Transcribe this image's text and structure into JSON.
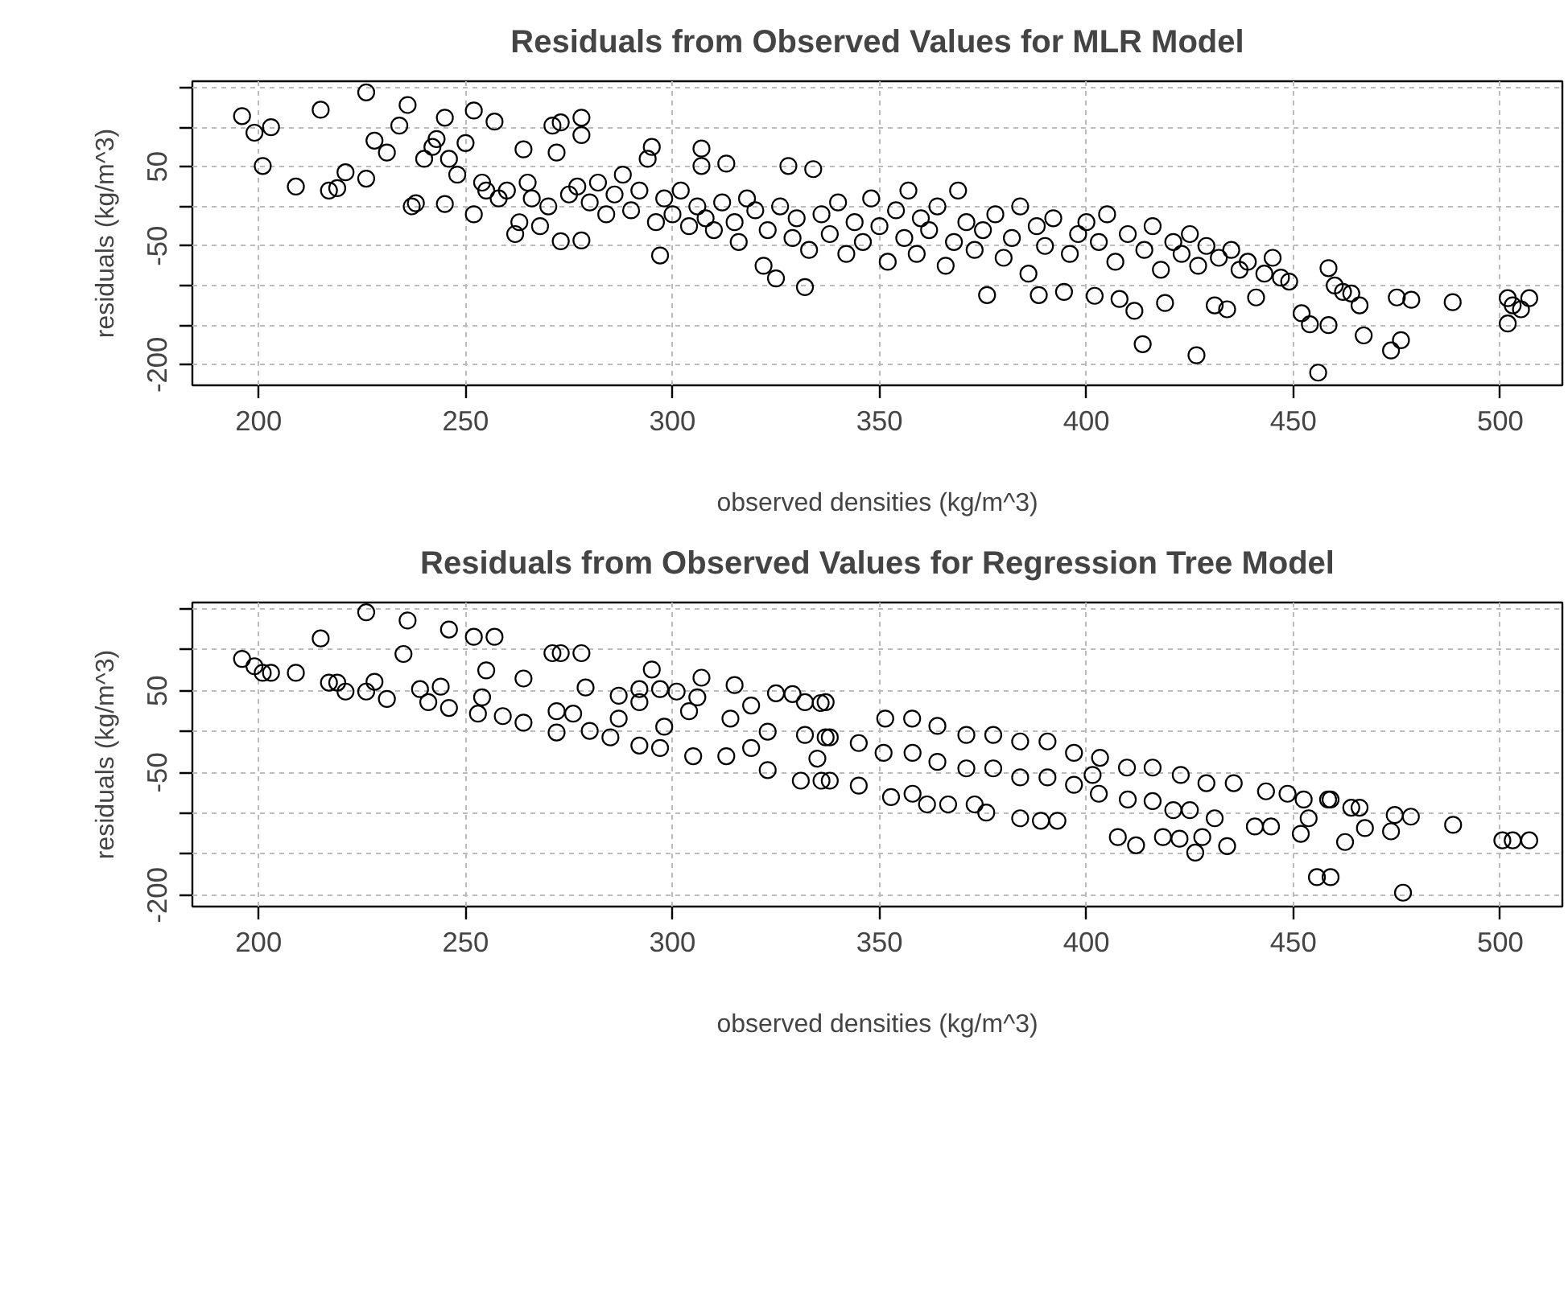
{
  "chart_data": [
    {
      "type": "scatter",
      "title": "Residuals from Observed Values for MLR Model",
      "xlabel": "observed densities (kg/m^3)",
      "ylabel": "residuals (kg/m^3)",
      "xlim": [
        184,
        515
      ],
      "ylim": [
        -226,
        158
      ],
      "xticks": [
        200,
        250,
        300,
        350,
        400,
        450,
        500
      ],
      "yticks": [
        {
          "value": 150,
          "label": null
        },
        {
          "value": 100,
          "label": null
        },
        50,
        {
          "value": 0,
          "label": null
        },
        -50,
        {
          "value": -100,
          "label": null
        },
        {
          "value": -150,
          "label": null
        },
        -200
      ],
      "grid": true,
      "marker": "circle",
      "series": [
        {
          "color": "#000000",
          "x": [
            196,
            199,
            203,
            201,
            209,
            215,
            217,
            219,
            221,
            226,
            226,
            228,
            231,
            236,
            234,
            237,
            238,
            240,
            242,
            243,
            245,
            245,
            246,
            248,
            250,
            252,
            252,
            254,
            255,
            257,
            258,
            260,
            262,
            263,
            264,
            265,
            266,
            268,
            270,
            271,
            272,
            273,
            273,
            275,
            277,
            278,
            278,
            278,
            280,
            282,
            284,
            286,
            288,
            290,
            292,
            294,
            295,
            296,
            297,
            298,
            300,
            302,
            304,
            306,
            307,
            307,
            308,
            310,
            312,
            313,
            315,
            316,
            318,
            320,
            322,
            323,
            325,
            326,
            328,
            329,
            330,
            332,
            333,
            334,
            336,
            338,
            340,
            342,
            344,
            346,
            348,
            350,
            352,
            354,
            356,
            357,
            359,
            360,
            362,
            364,
            366,
            368,
            369,
            371,
            373,
            375,
            376,
            378,
            380,
            382,
            384,
            386,
            388,
            388.5,
            390,
            392,
            394.6,
            396,
            398,
            400,
            402,
            403,
            405,
            407,
            408,
            410,
            411.6,
            413.6,
            414,
            416,
            418,
            419,
            421,
            423,
            425,
            426.6,
            427,
            429,
            431,
            432,
            434,
            435,
            437,
            439,
            441,
            443,
            445,
            447,
            449,
            452,
            454,
            456,
            458.5,
            458.5,
            460,
            462,
            464,
            466,
            467,
            473.6,
            475,
            476,
            478.5,
            488.5,
            501.8,
            501.8,
            503,
            505,
            507
          ],
          "values": [
            114,
            93,
            100,
            51,
            25,
            122,
            20,
            23,
            43,
            35,
            144,
            83,
            68,
            128,
            102,
            0,
            4,
            60,
            75,
            85,
            112,
            3,
            60,
            40,
            80,
            121,
            -10,
            30,
            20,
            107,
            10,
            20,
            -35,
            -20,
            72,
            30,
            10,
            -25,
            0,
            102,
            68,
            106,
            -44,
            15,
            25,
            112,
            90,
            -43,
            5,
            30,
            -10,
            15,
            40,
            -5,
            20,
            60,
            75,
            -20,
            -62,
            10,
            -10,
            20,
            -25,
            0,
            73,
            51,
            -15,
            -30,
            5,
            54,
            -20,
            -45,
            10,
            -5,
            -75,
            -30,
            -91,
            0,
            51,
            -40,
            -15,
            -102,
            -55,
            47,
            -10,
            -35,
            5,
            -60,
            -20,
            -45,
            10,
            -25,
            -70,
            -5,
            -40,
            20,
            -60,
            -15,
            -30,
            0,
            -75,
            -45,
            20,
            -20,
            -55,
            -30,
            -112,
            -10,
            -65,
            -40,
            0,
            -85,
            -25,
            -112,
            -50,
            -15,
            -108,
            -60,
            -35,
            -20,
            -113,
            -45,
            -10,
            -70,
            -117,
            -35,
            -132,
            -174,
            -55,
            -25,
            -80,
            -122,
            -45,
            -60,
            -35,
            -188,
            -75,
            -50,
            -125,
            -65,
            -130,
            -55,
            -80,
            -70,
            -115,
            -85,
            -65,
            -90,
            -95,
            -135,
            -149,
            -210,
            -78,
            -150,
            -100,
            -108,
            -110,
            -125,
            -163,
            -182,
            -115,
            -169,
            -118,
            -121,
            -116,
            -148,
            -125,
            -130,
            -116
          ]
        }
      ]
    },
    {
      "type": "scatter",
      "title": "Residuals from Observed Values for Regression Tree Model",
      "xlabel": "observed densities (kg/m^3)",
      "ylabel": "residuals (kg/m^3)",
      "xlim": [
        184,
        515
      ],
      "ylim": [
        -214,
        158
      ],
      "xticks": [
        200,
        250,
        300,
        350,
        400,
        450,
        500
      ],
      "yticks": [
        {
          "value": 150,
          "label": null
        },
        {
          "value": 100,
          "label": null
        },
        50,
        {
          "value": 0,
          "label": null
        },
        -50,
        {
          "value": -100,
          "label": null
        },
        {
          "value": -150,
          "label": null
        },
        -200
      ],
      "grid": true,
      "marker": "circle",
      "series": [
        {
          "color": "#000000",
          "x": [
            196,
            199,
            201,
            203,
            209,
            215,
            217,
            219,
            221,
            226,
            226,
            228,
            231,
            236,
            235,
            239,
            241,
            246,
            244,
            246,
            252,
            257,
            255,
            254,
            253,
            259,
            264,
            264,
            271,
            273,
            278,
            279,
            272,
            276,
            272,
            280,
            285,
            287,
            292,
            295,
            297,
            301,
            292,
            287,
            292,
            297,
            298,
            307,
            306,
            304,
            305,
            313,
            315,
            314,
            319,
            319,
            323,
            325,
            329,
            332,
            337,
            332,
            337,
            323,
            331,
            336,
            335,
            335.8,
            351.4,
            357.9,
            364,
            371,
            377.5,
            384,
            390.6,
            397,
            403.3,
            409.8,
            416,
            422.8,
            429,
            435.6,
            443.4,
            448.6,
            452.5,
            458.4,
            464,
            338,
            345,
            351,
            358,
            364,
            371,
            377.5,
            384,
            390.6,
            397,
            403,
            410,
            416,
            338,
            345,
            352.8,
            358,
            361.5,
            366.6,
            373,
            375.8,
            384,
            389,
            393,
            401.5,
            407.6,
            412,
            418.5,
            422.5,
            426.3,
            428,
            421,
            425,
            431,
            434,
            440.7,
            444.6,
            451.8,
            453.7,
            455.7,
            459,
            462.5,
            467.3,
            473.6,
            474.5,
            478.4,
            476.5,
            488.6,
            500.5,
            503,
            507,
            459,
            466
          ],
          "values": [
            89,
            80,
            72,
            72,
            72,
            114,
            60,
            60,
            49,
            49,
            146,
            61,
            40,
            136,
            95,
            52,
            36,
            125,
            55,
            29,
            116,
            116,
            75,
            42,
            22,
            19,
            65,
            11,
            96,
            96,
            96,
            54,
            25,
            22,
            -1,
            1,
            -7,
            44,
            52,
            76,
            52,
            49,
            36,
            16,
            -17,
            -20,
            6,
            66,
            42,
            25,
            -30,
            -30,
            57,
            16,
            32,
            -20,
            0,
            47,
            46,
            36,
            36,
            -4,
            -7,
            -47,
            -60,
            -60,
            -33,
            35,
            16,
            16,
            7,
            -4,
            -4,
            -12,
            -12,
            -26,
            -32,
            -44,
            -44,
            -53,
            -63,
            -63,
            -73,
            -76,
            -83,
            -83,
            -93,
            -7,
            -14,
            -26,
            -26,
            -37,
            -45,
            -45,
            -56,
            -56,
            -65,
            -76,
            -83,
            -85,
            -60,
            -66,
            -80,
            -76,
            -89,
            -89,
            -89,
            -99,
            -106,
            -109,
            -109,
            -53,
            -129,
            -139,
            -129,
            -131,
            -148,
            -129,
            -96,
            -96,
            -106,
            -140,
            -116,
            -116,
            -125,
            -106,
            -178,
            -178,
            -135,
            -118,
            -122,
            -102,
            -104,
            -197,
            -114,
            -133,
            -133,
            -133,
            -83,
            -93
          ]
        }
      ]
    }
  ]
}
